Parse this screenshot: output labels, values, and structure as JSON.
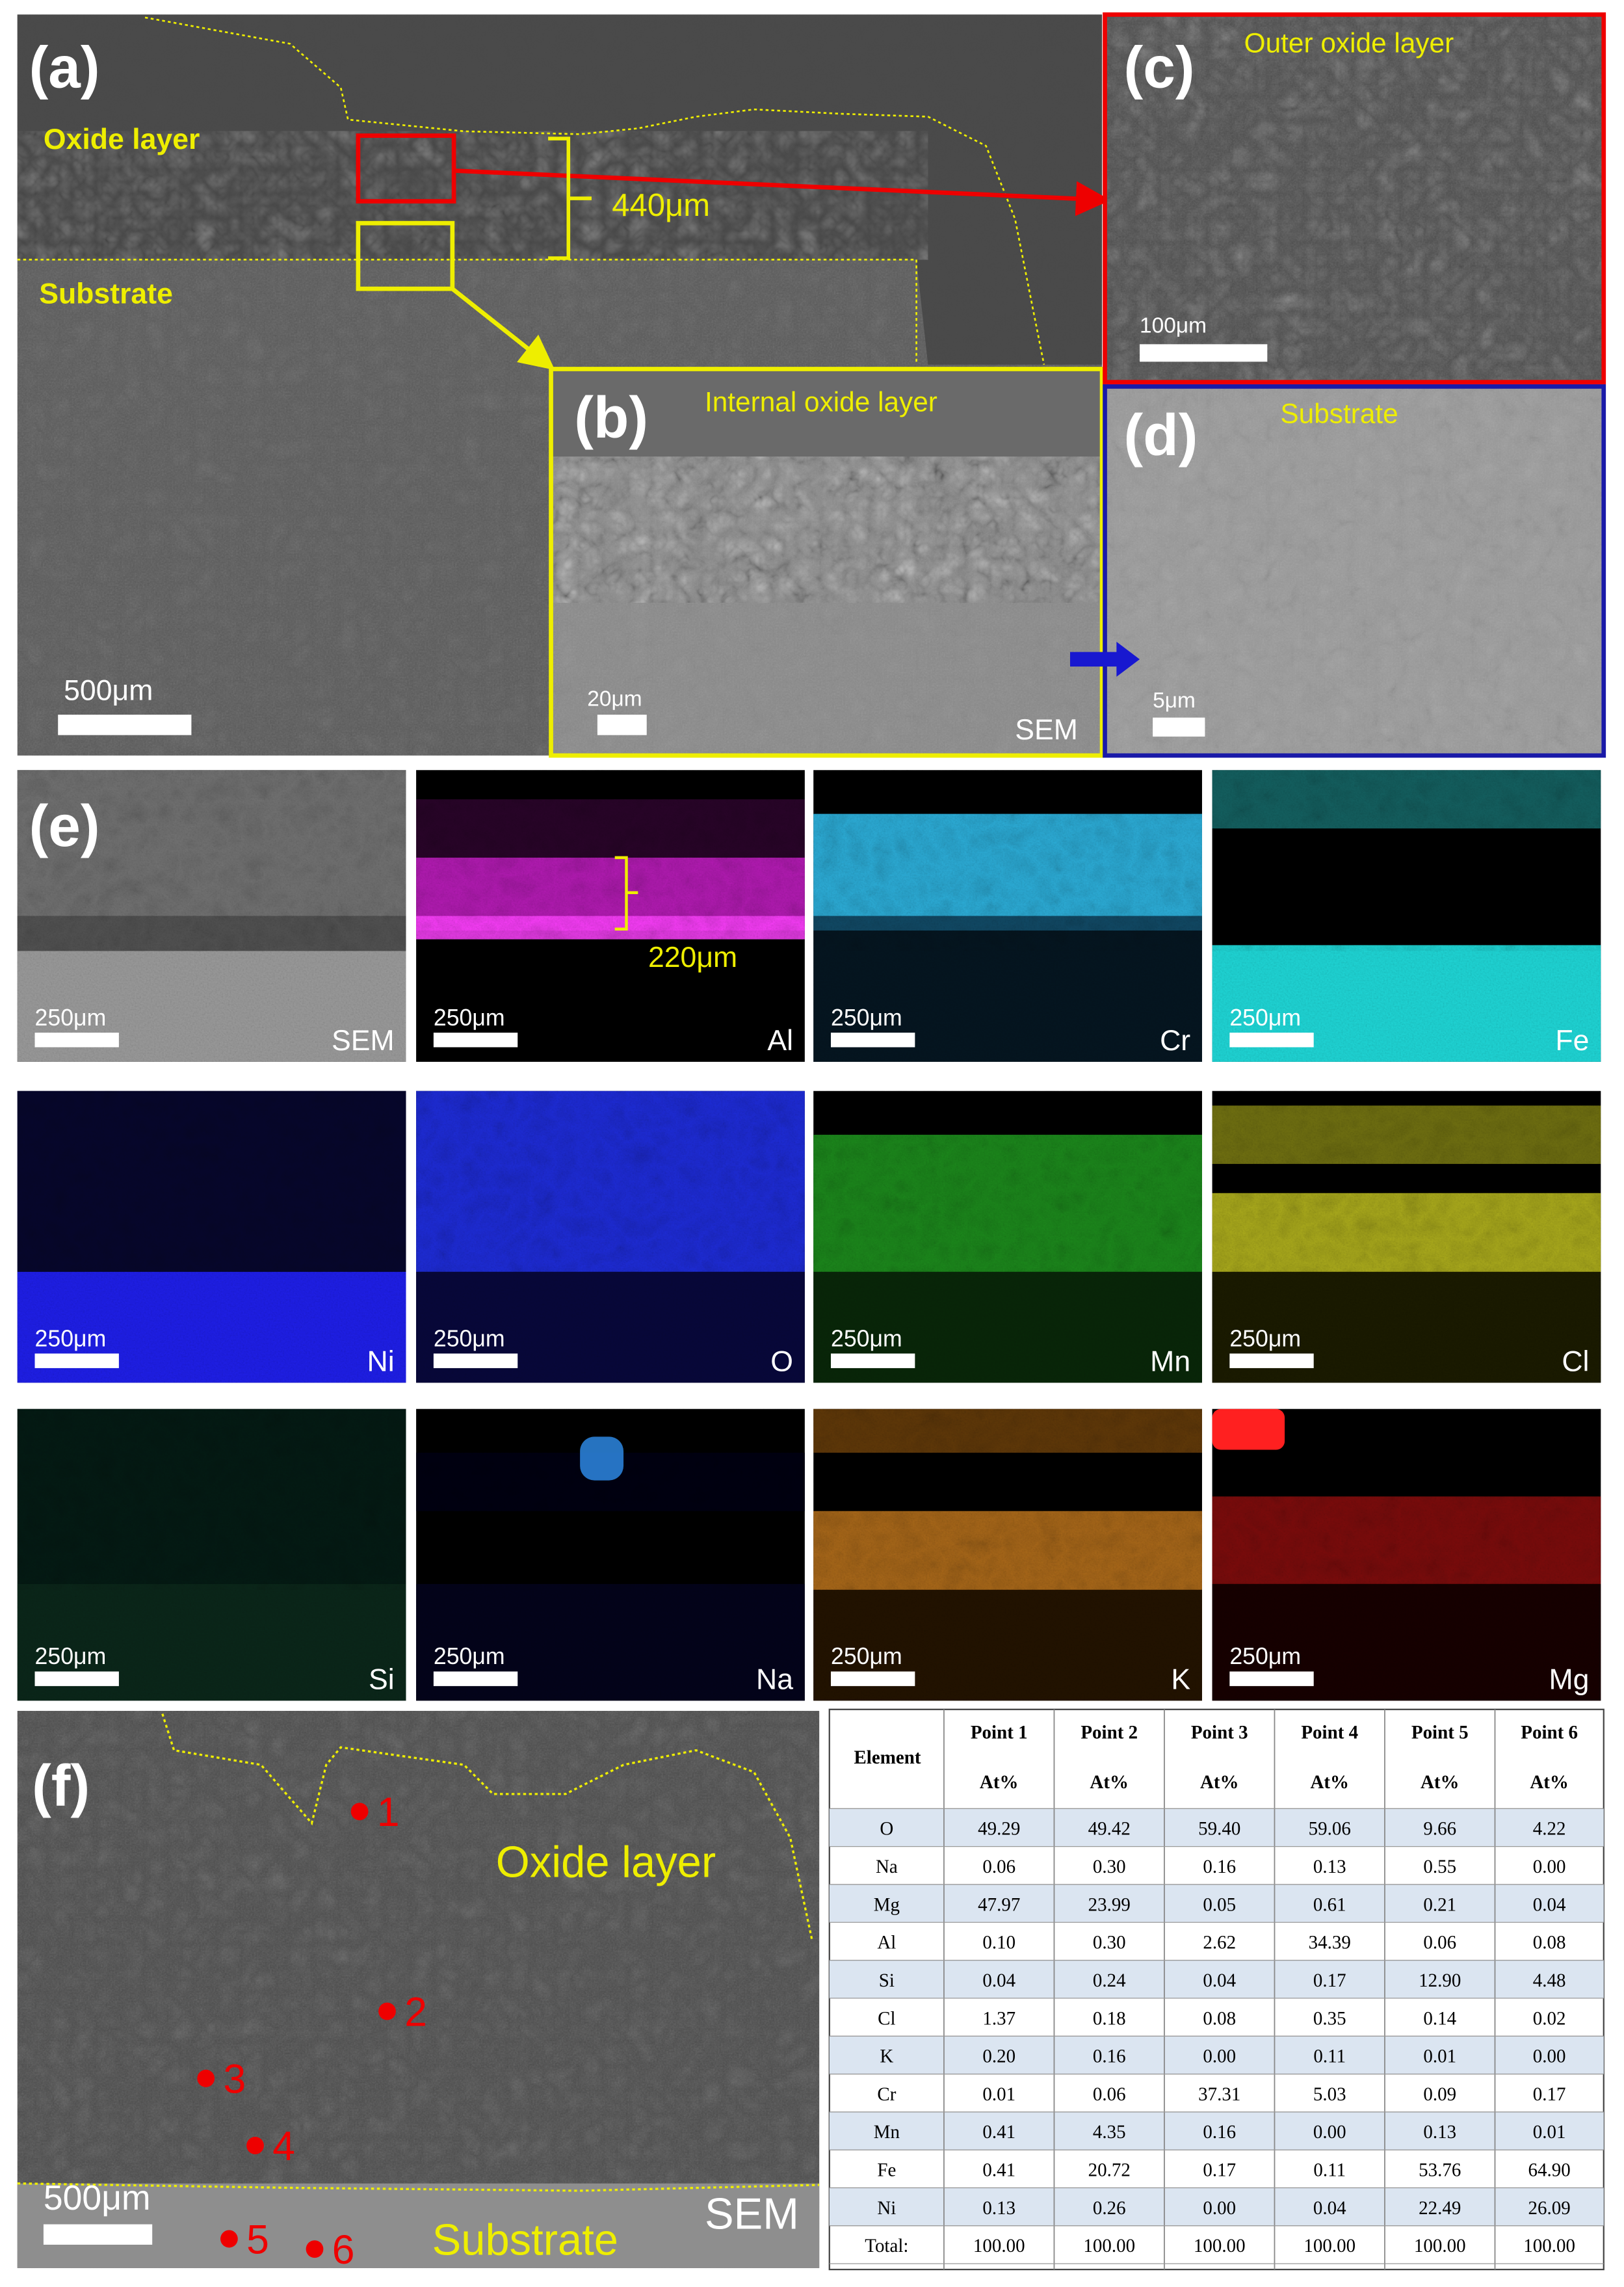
{
  "panel_a": {
    "label": "(a)",
    "oxide_layer": "Oxide layer",
    "substrate": "Substrate",
    "thickness": "440μm",
    "scale_bar": "500μm"
  },
  "panel_b": {
    "label": "(b)",
    "title": "Internal oxide layer",
    "scale_bar": "20μm",
    "mode": "SEM"
  },
  "panel_c": {
    "label": "(c)",
    "title": "Outer oxide layer",
    "scale_bar": "100μm"
  },
  "panel_d": {
    "label": "(d)",
    "title": "Substrate",
    "scale_bar": "5μm"
  },
  "panel_e": {
    "label": "(e)",
    "thickness": "220μm",
    "maps": [
      {
        "name": "SEM",
        "scale_bar": "250μm"
      },
      {
        "name": "Al",
        "scale_bar": "250μm"
      },
      {
        "name": "Cr",
        "scale_bar": "250μm"
      },
      {
        "name": "Fe",
        "scale_bar": "250μm"
      },
      {
        "name": "Ni",
        "scale_bar": "250μm"
      },
      {
        "name": "O",
        "scale_bar": "250μm"
      },
      {
        "name": "Mn",
        "scale_bar": "250μm"
      },
      {
        "name": "Cl",
        "scale_bar": "250μm"
      },
      {
        "name": "Si",
        "scale_bar": "250μm"
      },
      {
        "name": "Na",
        "scale_bar": "250μm"
      },
      {
        "name": "K",
        "scale_bar": "250μm"
      },
      {
        "name": "Mg",
        "scale_bar": "250μm"
      }
    ]
  },
  "panel_f": {
    "label": "(f)",
    "oxide_layer": "Oxide layer",
    "substrate": "Substrate",
    "mode": "SEM",
    "scale_bar": "500μm",
    "points": [
      "1",
      "2",
      "3",
      "4",
      "5",
      "6"
    ]
  },
  "table": {
    "corner": "Element",
    "columns": [
      {
        "name": "Point 1",
        "unit": "At%"
      },
      {
        "name": "Point 2",
        "unit": "At%"
      },
      {
        "name": "Point 3",
        "unit": "At%"
      },
      {
        "name": "Point 4",
        "unit": "At%"
      },
      {
        "name": "Point 5",
        "unit": "At%"
      },
      {
        "name": "Point 6",
        "unit": "At%"
      }
    ],
    "rows": [
      [
        "O",
        "49.29",
        "49.42",
        "59.40",
        "59.06",
        "9.66",
        "4.22"
      ],
      [
        "Na",
        "0.06",
        "0.30",
        "0.16",
        "0.13",
        "0.55",
        "0.00"
      ],
      [
        "Mg",
        "47.97",
        "23.99",
        "0.05",
        "0.61",
        "0.21",
        "0.04"
      ],
      [
        "Al",
        "0.10",
        "0.30",
        "2.62",
        "34.39",
        "0.06",
        "0.08"
      ],
      [
        "Si",
        "0.04",
        "0.24",
        "0.04",
        "0.17",
        "12.90",
        "4.48"
      ],
      [
        "Cl",
        "1.37",
        "0.18",
        "0.08",
        "0.35",
        "0.14",
        "0.02"
      ],
      [
        "K",
        "0.20",
        "0.16",
        "0.00",
        "0.11",
        "0.01",
        "0.00"
      ],
      [
        "Cr",
        "0.01",
        "0.06",
        "37.31",
        "5.03",
        "0.09",
        "0.17"
      ],
      [
        "Mn",
        "0.41",
        "4.35",
        "0.16",
        "0.00",
        "0.13",
        "0.01"
      ],
      [
        "Fe",
        "0.41",
        "20.72",
        "0.17",
        "0.11",
        "53.76",
        "64.90"
      ],
      [
        "Ni",
        "0.13",
        "0.26",
        "0.00",
        "0.04",
        "22.49",
        "26.09"
      ],
      [
        "Total:",
        "100.00",
        "100.00",
        "100.00",
        "100.00",
        "100.00",
        "100.00"
      ]
    ]
  }
}
